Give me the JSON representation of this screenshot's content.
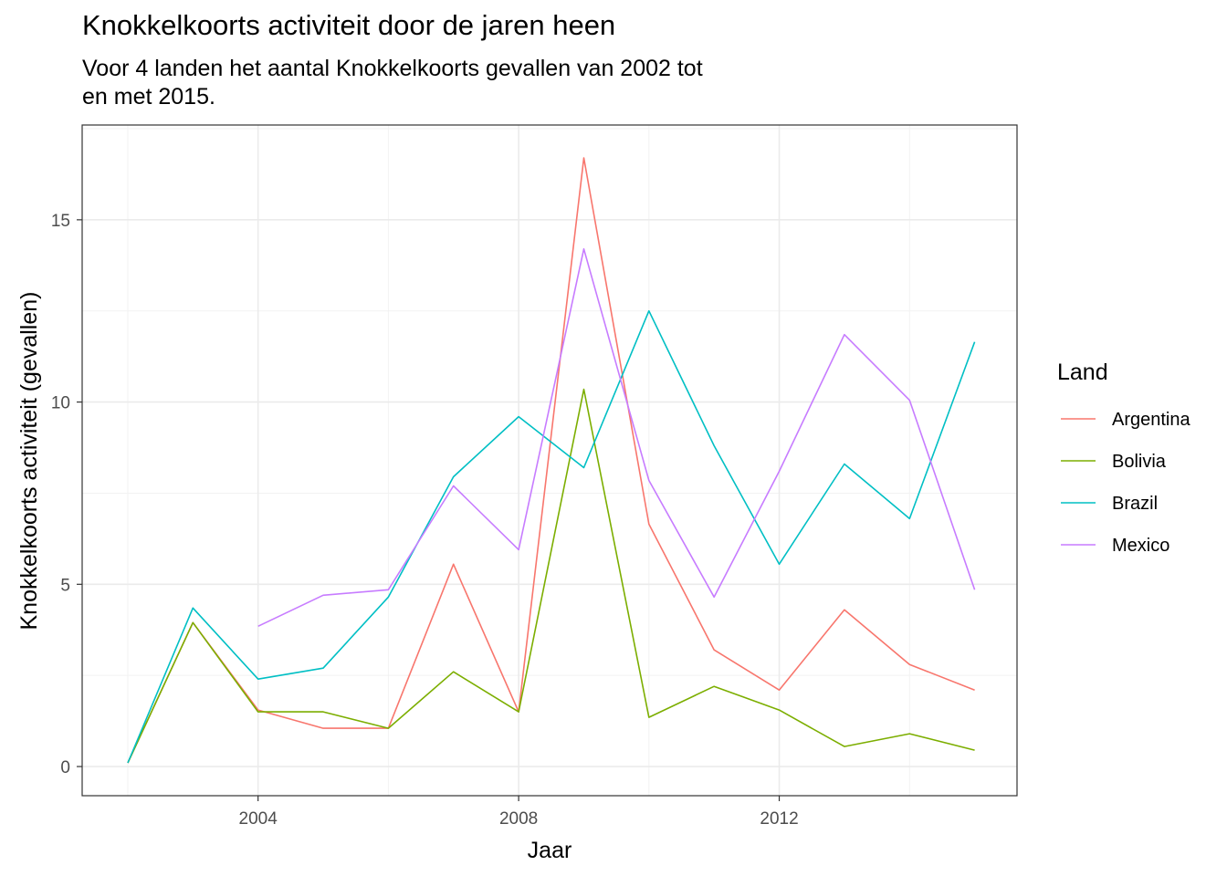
{
  "chart_data": {
    "type": "line",
    "title": "Knokkelkoorts activiteit door de jaren heen",
    "subtitle": "Voor 4 landen het aantal Knokkelkoorts gevallen van 2002 tot\nen met 2015.",
    "xlabel": "Jaar",
    "ylabel": "Knokkelkoorts activiteit (gevallen)",
    "x": [
      2002,
      2003,
      2004,
      2005,
      2006,
      2007,
      2008,
      2009,
      2010,
      2011,
      2012,
      2013,
      2014,
      2015
    ],
    "xlim": [
      2001.3,
      2015.65
    ],
    "ylim": [
      -0.8,
      17.6
    ],
    "x_ticks": [
      2004,
      2008,
      2012
    ],
    "y_ticks": [
      0,
      5,
      10,
      15
    ],
    "grid": true,
    "legend": {
      "title": "Land",
      "position": "right"
    },
    "series": [
      {
        "name": "Argentina",
        "color": "#F8766D",
        "values": [
          0.1,
          3.95,
          1.55,
          1.05,
          1.05,
          5.55,
          1.5,
          16.7,
          6.65,
          3.2,
          2.1,
          4.3,
          2.8,
          2.1
        ]
      },
      {
        "name": "Bolivia",
        "color": "#7CAE00",
        "values": [
          0.1,
          3.95,
          1.5,
          1.5,
          1.05,
          2.6,
          1.5,
          10.35,
          1.35,
          2.2,
          1.55,
          0.55,
          0.9,
          0.45
        ]
      },
      {
        "name": "Brazil",
        "color": "#00BFC4",
        "values": [
          0.1,
          4.35,
          2.4,
          2.7,
          4.65,
          7.95,
          9.6,
          8.2,
          12.5,
          8.8,
          5.55,
          8.3,
          6.8,
          11.65
        ]
      },
      {
        "name": "Mexico",
        "color": "#C77CFF",
        "values": [
          null,
          null,
          3.85,
          4.7,
          4.85,
          7.7,
          5.95,
          14.2,
          7.85,
          4.65,
          8.1,
          11.85,
          10.05,
          4.85
        ]
      }
    ]
  }
}
